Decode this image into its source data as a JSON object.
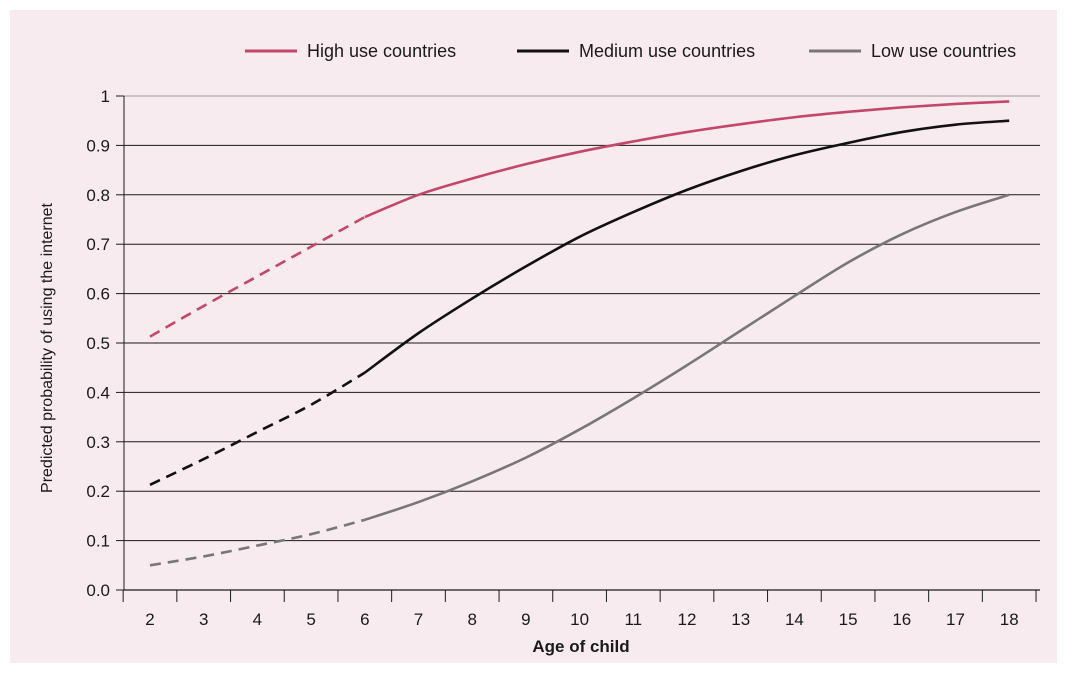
{
  "chart_data": {
    "type": "line",
    "title": "",
    "xlabel": "Age of child",
    "ylabel": "Predicted probability of using the internet",
    "x": [
      2,
      3,
      4,
      5,
      6,
      7,
      8,
      9,
      10,
      11,
      12,
      13,
      14,
      15,
      16,
      17,
      18
    ],
    "x_tick_labels": [
      "2",
      "3",
      "4",
      "5",
      "6",
      "7",
      "8",
      "9",
      "10",
      "11",
      "12",
      "13",
      "14",
      "15",
      "16",
      "17",
      "18"
    ],
    "y_tick_labels": [
      "0.0",
      "0.1",
      "0.2",
      "0.3",
      "0.4",
      "0.5",
      "0.6",
      "0.7",
      "0.8",
      "0.9",
      "1"
    ],
    "ylim": [
      0,
      1
    ],
    "xlim": [
      2,
      18
    ],
    "grid": "horizontal",
    "legend_position": "top",
    "dashed_until_x": 6,
    "series": [
      {
        "name": "High use countries",
        "color": "#c2476b",
        "values": [
          0.513,
          0.575,
          0.635,
          0.695,
          0.755,
          0.8,
          0.833,
          0.862,
          0.887,
          0.908,
          0.927,
          0.943,
          0.957,
          0.968,
          0.977,
          0.984,
          0.989
        ]
      },
      {
        "name": "Medium use countries",
        "color": "#111111",
        "values": [
          0.213,
          0.265,
          0.32,
          0.375,
          0.44,
          0.52,
          0.59,
          0.655,
          0.715,
          0.765,
          0.81,
          0.848,
          0.88,
          0.905,
          0.927,
          0.942,
          0.95
        ]
      },
      {
        "name": "Low use countries",
        "color": "#77777a",
        "values": [
          0.05,
          0.068,
          0.09,
          0.113,
          0.142,
          0.178,
          0.22,
          0.268,
          0.325,
          0.388,
          0.455,
          0.525,
          0.595,
          0.663,
          0.72,
          0.765,
          0.8
        ]
      }
    ]
  }
}
